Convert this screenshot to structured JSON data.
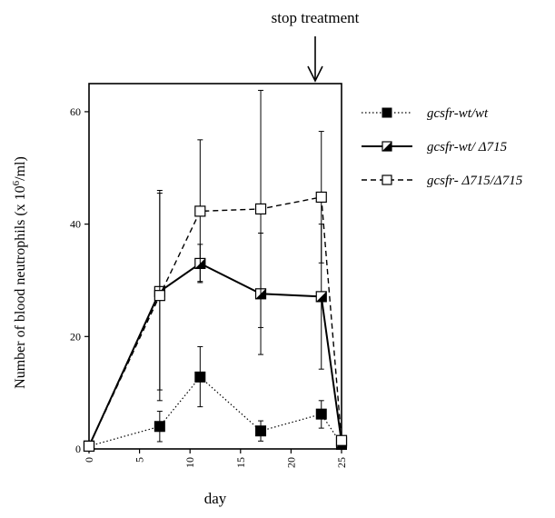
{
  "chart_data": {
    "type": "line",
    "title": "",
    "xlabel": "day",
    "ylabel": "Number of blood neutrophils (x 10",
    "ylabel_sup": "6",
    "ylabel_tail": "/ml)",
    "xlim": [
      0,
      25
    ],
    "ylim": [
      0,
      65
    ],
    "x_ticks": [
      0,
      5,
      10,
      15,
      20,
      25
    ],
    "y_ticks": [
      0,
      20,
      40,
      60
    ],
    "grid": false,
    "legend_position": "right",
    "annotation": {
      "text": "stop treatment",
      "x": 23
    },
    "series": [
      {
        "name": "gcsfr-wt/wt",
        "line_style": "dotted",
        "marker": "filled-square",
        "points": [
          {
            "x": 0,
            "y": 0.5,
            "err_low": 0,
            "err_high": 0
          },
          {
            "x": 7,
            "y": 4,
            "err_low": 1.3,
            "err_high": 6.7
          },
          {
            "x": 11,
            "y": 12.8,
            "err_low": 7.5,
            "err_high": 18.2
          },
          {
            "x": 17,
            "y": 3.2,
            "err_low": 1.4,
            "err_high": 5
          },
          {
            "x": 23,
            "y": 6.2,
            "err_low": 3.7,
            "err_high": 8.6
          },
          {
            "x": 25,
            "y": 0.8,
            "err_low": 0,
            "err_high": 0
          }
        ]
      },
      {
        "name": "gcsfr-wt/ Δ715",
        "line_style": "solid",
        "marker": "half-filled-square",
        "points": [
          {
            "x": 0,
            "y": 0.5,
            "err_low": 0,
            "err_high": 0
          },
          {
            "x": 7,
            "y": 28,
            "err_low": 10.5,
            "err_high": 45.5
          },
          {
            "x": 11,
            "y": 33,
            "err_low": 29.8,
            "err_high": 36.4
          },
          {
            "x": 17,
            "y": 27.6,
            "err_low": 16.8,
            "err_high": 38.4
          },
          {
            "x": 23,
            "y": 27.1,
            "err_low": 14.2,
            "err_high": 40
          },
          {
            "x": 25,
            "y": 1.2,
            "err_low": 0,
            "err_high": 0
          }
        ]
      },
      {
        "name": "gcsfr- Δ715/Δ715",
        "line_style": "dashed",
        "marker": "open-square",
        "points": [
          {
            "x": 0,
            "y": 0.5,
            "err_low": 0,
            "err_high": 0
          },
          {
            "x": 7,
            "y": 27.3,
            "err_low": 8.6,
            "err_high": 46
          },
          {
            "x": 11,
            "y": 42.3,
            "err_low": 29.6,
            "err_high": 55
          },
          {
            "x": 17,
            "y": 42.7,
            "err_low": 21.6,
            "err_high": 63.8
          },
          {
            "x": 23,
            "y": 44.8,
            "err_low": 33.1,
            "err_high": 56.5
          },
          {
            "x": 25,
            "y": 1.5,
            "err_low": 0,
            "err_high": 0
          }
        ]
      }
    ]
  }
}
